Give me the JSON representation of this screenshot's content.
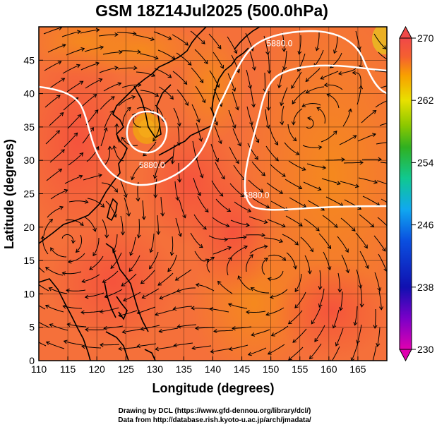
{
  "chart_data": {
    "type": "heatmap",
    "title": "GSM 18Z14Jul2025 (500.0hPa)",
    "xlabel": "Longitude (degrees)",
    "ylabel": "Latitude  (degrees)",
    "xlim": [
      110,
      170
    ],
    "ylim": [
      0,
      50
    ],
    "xticks": [
      "110",
      "115",
      "120",
      "125",
      "130",
      "135",
      "140",
      "145",
      "150",
      "155",
      "160",
      "165"
    ],
    "yticks": [
      "0",
      "5",
      "10",
      "15",
      "20",
      "25",
      "30",
      "35",
      "40",
      "45"
    ],
    "colorbar": {
      "min": 230,
      "max": 270,
      "ticks": [
        "270",
        "262",
        "254",
        "246",
        "238",
        "230"
      ]
    },
    "contours": [
      {
        "value": 5880.0,
        "label": "5880.0",
        "label_lon": 129.5,
        "label_lat": 29.3
      },
      {
        "value": 5880.0,
        "label": "5880.0",
        "label_lon": 147.5,
        "label_lat": 24.8
      },
      {
        "value": 5880.0,
        "label": "5880.0",
        "label_lon": 151.5,
        "label_lat": 47.5
      }
    ],
    "field_centers": [
      {
        "name": "low-center-east-china-sea",
        "lon": 128,
        "lat": 36.5
      },
      {
        "name": "anticyclone-pacific",
        "lon": 156,
        "lat": 35
      },
      {
        "name": "cyclone-south-china-sea",
        "lon": 114.5,
        "lat": 18
      },
      {
        "name": "cyclone-west-pacific",
        "lon": 151,
        "lat": 14
      }
    ]
  },
  "credits": {
    "line1": "Drawing by DCL (https://www.gfd-dennou.org/library/dcl/)",
    "line2": "Data from http://database.rish.kyoto-u.ac.jp/arch/jmadata/"
  }
}
